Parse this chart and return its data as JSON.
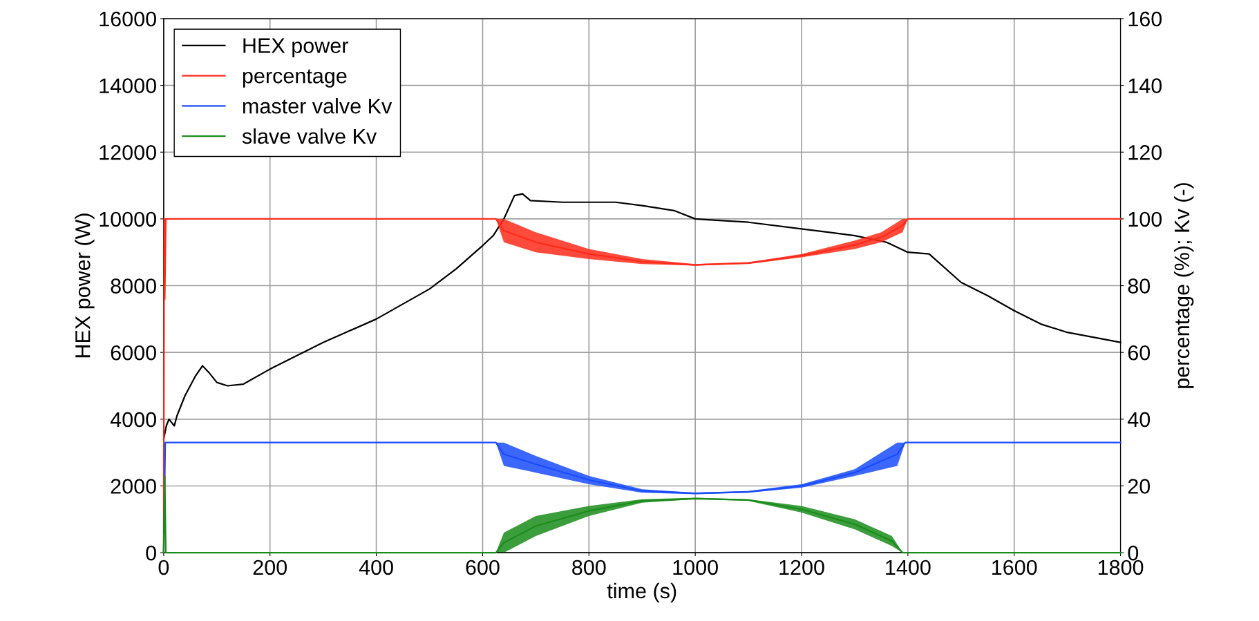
{
  "chart_data": {
    "type": "line",
    "xlabel": "time (s)",
    "ylabel": "HEX power (W)",
    "y2label": "percentage (%); Kv (-)",
    "xlim": [
      0,
      1800
    ],
    "xticks": [
      0,
      200,
      400,
      600,
      800,
      1000,
      1200,
      1400,
      1600,
      1800
    ],
    "ylim": [
      0,
      16000
    ],
    "yticks": [
      0,
      2000,
      4000,
      6000,
      8000,
      10000,
      12000,
      14000,
      16000
    ],
    "y2lim": [
      0,
      160
    ],
    "y2ticks": [
      0,
      20,
      40,
      60,
      80,
      100,
      120,
      140,
      160
    ],
    "grid": true,
    "legend": "top left",
    "marker": "none",
    "line_style": "solid",
    "series": [
      {
        "name": "HEX power",
        "color": "#000000",
        "x": [
          0,
          5,
          10,
          20,
          25,
          40,
          60,
          73,
          85,
          100,
          120,
          150,
          200,
          250,
          300,
          350,
          400,
          450,
          500,
          550,
          600,
          620,
          640,
          660,
          675,
          690,
          750,
          850,
          900,
          960,
          1000,
          1100,
          1200,
          1250,
          1300,
          1360,
          1400,
          1440,
          1500,
          1550,
          1600,
          1650,
          1700,
          1750,
          1800
        ],
        "values": [
          3400,
          3800,
          4000,
          3800,
          4100,
          4700,
          5300,
          5600,
          5400,
          5100,
          5000,
          5050,
          5500,
          5900,
          6300,
          6650,
          7000,
          7450,
          7900,
          8500,
          9200,
          9500,
          10000,
          10700,
          10750,
          10550,
          10500,
          10500,
          10400,
          10250,
          10000,
          9900,
          9700,
          9600,
          9500,
          9300,
          9000,
          8950,
          8100,
          7700,
          7250,
          6850,
          6600,
          6450,
          6300
        ]
      },
      {
        "name": "percentage",
        "color": "#ff2a1a",
        "axis": "y2",
        "x": [
          0,
          1,
          2,
          4,
          625,
          640,
          700,
          800,
          900,
          1000,
          1100,
          1200,
          1300,
          1350,
          1390,
          1400,
          1800
        ],
        "values": [
          0,
          100,
          76,
          100,
          100,
          96.5,
          93,
          89.5,
          87.2,
          86.2,
          86.8,
          89,
          92.2,
          94.5,
          98,
          100,
          100
        ],
        "lower": [
          0,
          100,
          76,
          100,
          100,
          93,
          90,
          88,
          86.5,
          86,
          86.5,
          88.5,
          91,
          93,
          96,
          100,
          100
        ],
        "upper": [
          0,
          100,
          76,
          100,
          100,
          100,
          96,
          91,
          88,
          86.5,
          87,
          89.5,
          93.5,
          96,
          100,
          100,
          100
        ]
      },
      {
        "name": "master valve Kv",
        "color": "#1a4cff",
        "axis": "y2",
        "x": [
          0,
          3,
          625,
          640,
          700,
          800,
          900,
          1000,
          1100,
          1200,
          1300,
          1380,
          1395,
          1800
        ],
        "values": [
          0,
          33,
          33,
          29.5,
          26.5,
          21.8,
          18.5,
          17.8,
          18.2,
          20,
          24,
          29.5,
          33,
          33
        ],
        "lower": [
          0,
          33,
          33,
          26,
          24,
          20.5,
          18,
          17.5,
          18,
          19.5,
          23,
          26,
          33,
          33
        ],
        "upper": [
          0,
          33,
          33,
          33,
          29,
          23,
          19,
          18,
          18.5,
          20.5,
          25,
          33,
          33,
          33
        ]
      },
      {
        "name": "slave valve Kv",
        "color": "#1a8c1a",
        "axis": "y2",
        "x": [
          0,
          2,
          4,
          625,
          640,
          700,
          800,
          900,
          1000,
          1100,
          1200,
          1300,
          1370,
          1390,
          1800
        ],
        "values": [
          0,
          23,
          0,
          0,
          3,
          8,
          12.5,
          15.5,
          16.2,
          15.8,
          13,
          8.5,
          3.5,
          0,
          0
        ],
        "lower": [
          0,
          23,
          0,
          0,
          0,
          5,
          11,
          15,
          16,
          15.5,
          12,
          7,
          2,
          0,
          0
        ],
        "upper": [
          0,
          23,
          0,
          0,
          6,
          11,
          14,
          16,
          16.5,
          16,
          14,
          10,
          5,
          0,
          0
        ]
      }
    ]
  }
}
